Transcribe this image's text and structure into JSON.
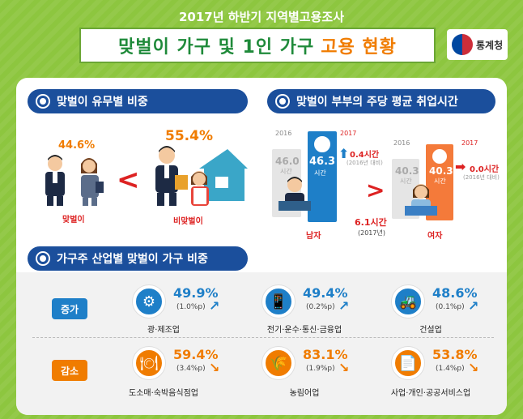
{
  "header": {
    "subtitle": "2017년 하반기 지역별고용조사",
    "title_main": "맞벌이 가구 및 1인 가구",
    "title_accent": "고용 현황",
    "logo_text": "통계청"
  },
  "section1": {
    "heading": "맞벌이 유무별 비중",
    "dual_pct": "44.6%",
    "dual_label": "맞벌이",
    "nondual_pct": "55.4%",
    "nondual_label": "비맞벌이",
    "compare": "<"
  },
  "section2": {
    "heading": "맞벌이 부부의 주당 평균 취업시간",
    "male": {
      "year_prev": "2016",
      "year_curr": "2017",
      "prev_value": "46.0",
      "prev_unit": "시간",
      "curr_value": "46.3",
      "curr_unit": "시간",
      "change": "0.4시간",
      "change_note": "(2016년 대비)",
      "label": "남자"
    },
    "gap": {
      "value": "6.1시간",
      "note": "(2017년)"
    },
    "female": {
      "year_prev": "2016",
      "year_curr": "2017",
      "prev_value": "40.3",
      "prev_unit": "시간",
      "curr_value": "40.3",
      "curr_unit": "시간",
      "change": "0.0시간",
      "change_note": "(2016년 대비)",
      "label": "여자"
    }
  },
  "section3": {
    "heading": "가구주 산업별 맞벌이 가구 비중",
    "increase_tag": "증가",
    "decrease_tag": "감소",
    "increase": [
      {
        "icon": "gear-icon",
        "pct": "49.9%",
        "change": "(1.0%p)",
        "label": "광·제조업"
      },
      {
        "icon": "phone-icon",
        "pct": "49.4%",
        "change": "(0.2%p)",
        "label": "전기·운수·통신·금융업"
      },
      {
        "icon": "excavator-icon",
        "pct": "48.6%",
        "change": "(0.1%p)",
        "label": "건설업"
      }
    ],
    "decrease": [
      {
        "icon": "dish-icon",
        "pct": "59.4%",
        "change": "(3.4%p)",
        "label": "도소매·숙박음식점업"
      },
      {
        "icon": "wheat-icon",
        "pct": "83.1%",
        "change": "(1.9%p)",
        "label": "농림어업"
      },
      {
        "icon": "document-icon",
        "pct": "53.8%",
        "change": "(1.4%p)",
        "label": "사업·개인·공공서비스업"
      }
    ]
  },
  "colors": {
    "background": "#8dc63f",
    "heading": "#1b4f9c",
    "accent_orange": "#f07c00",
    "increase_blue": "#1e7fc8",
    "decrease_orange": "#f07c00"
  }
}
